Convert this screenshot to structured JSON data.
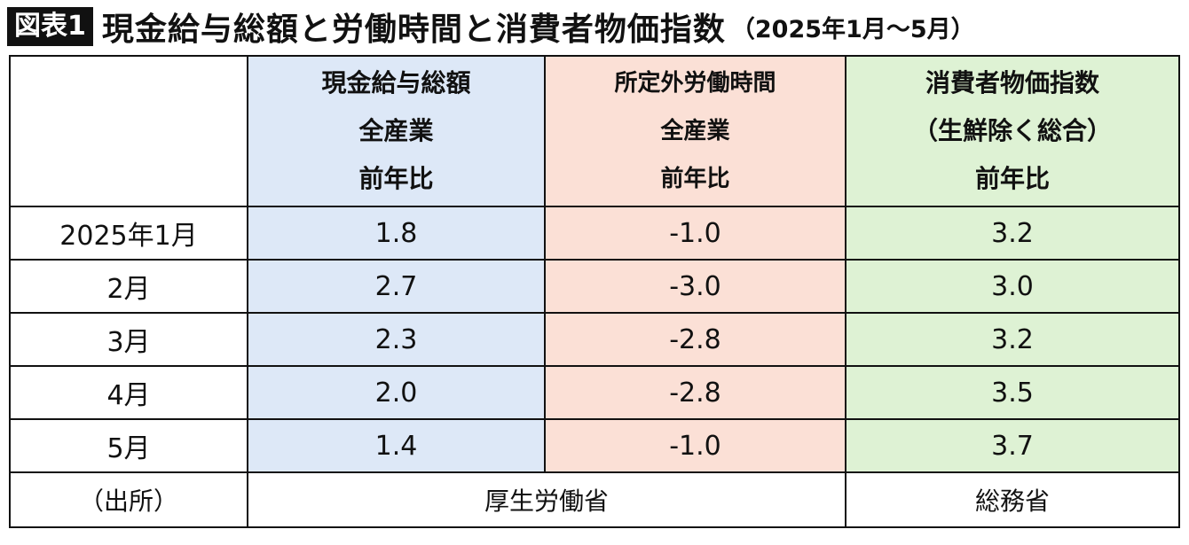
{
  "title": {
    "badge": "図表1",
    "main": "現金給与総額と労働時間と消費者物価指数",
    "sub": "（2025年1月〜5月）"
  },
  "table": {
    "columns": [
      {
        "lines": [
          "",
          "",
          ""
        ],
        "color": "#ffffff"
      },
      {
        "lines": [
          "現金給与総額",
          "全産業",
          "前年比"
        ],
        "color": "#dde8f7"
      },
      {
        "lines": [
          "所定外労働時間",
          "全産業",
          "前年比"
        ],
        "color": "#fbe0d6"
      },
      {
        "lines": [
          "消費者物価指数",
          "（生鮮除く総合）",
          "前年比"
        ],
        "color": "#def2d4"
      }
    ],
    "rows": [
      {
        "label": "2025年1月",
        "values": [
          "1.8",
          "-1.0",
          "3.2"
        ]
      },
      {
        "label": "2月",
        "values": [
          "2.7",
          "-3.0",
          "3.0"
        ]
      },
      {
        "label": "3月",
        "values": [
          "2.3",
          "-2.8",
          "3.2"
        ]
      },
      {
        "label": "4月",
        "values": [
          "2.0",
          "-2.8",
          "3.5"
        ]
      },
      {
        "label": "5月",
        "values": [
          "1.4",
          "-1.0",
          "3.7"
        ]
      }
    ],
    "source": {
      "label": "（出所）",
      "mhlw": "厚生労働省",
      "mic": "総務省"
    }
  }
}
